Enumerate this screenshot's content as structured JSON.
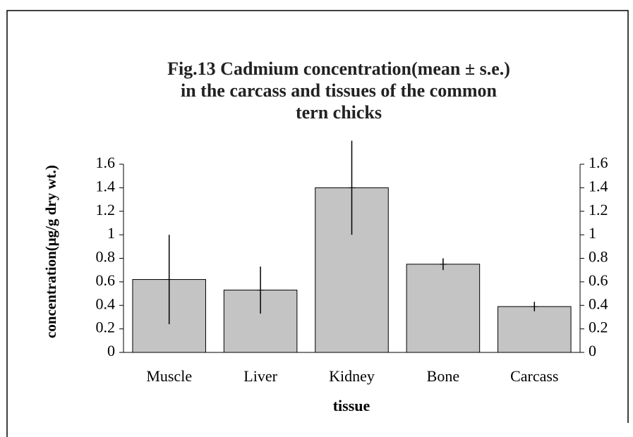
{
  "chart_data": {
    "type": "bar",
    "title": "Fig.13  Cadmium concentration(mean ± s.e.) in the carcass and tissues of the common tern chicks",
    "x_label": "tissue",
    "y_label": "concentration(μg/g dry wt.)",
    "categories": [
      "Muscle",
      "Liver",
      "Kidney",
      "Bone",
      "Carcass"
    ],
    "values": [
      0.62,
      0.53,
      1.4,
      0.75,
      0.39
    ],
    "errors": [
      0.38,
      0.2,
      0.4,
      0.05,
      0.04
    ],
    "color": "#c4c4c4",
    "ylim": [
      0,
      1.6
    ],
    "yticks": [
      0,
      0.2,
      0.4,
      0.6,
      0.8,
      1,
      1.2,
      1.4,
      1.6
    ]
  }
}
